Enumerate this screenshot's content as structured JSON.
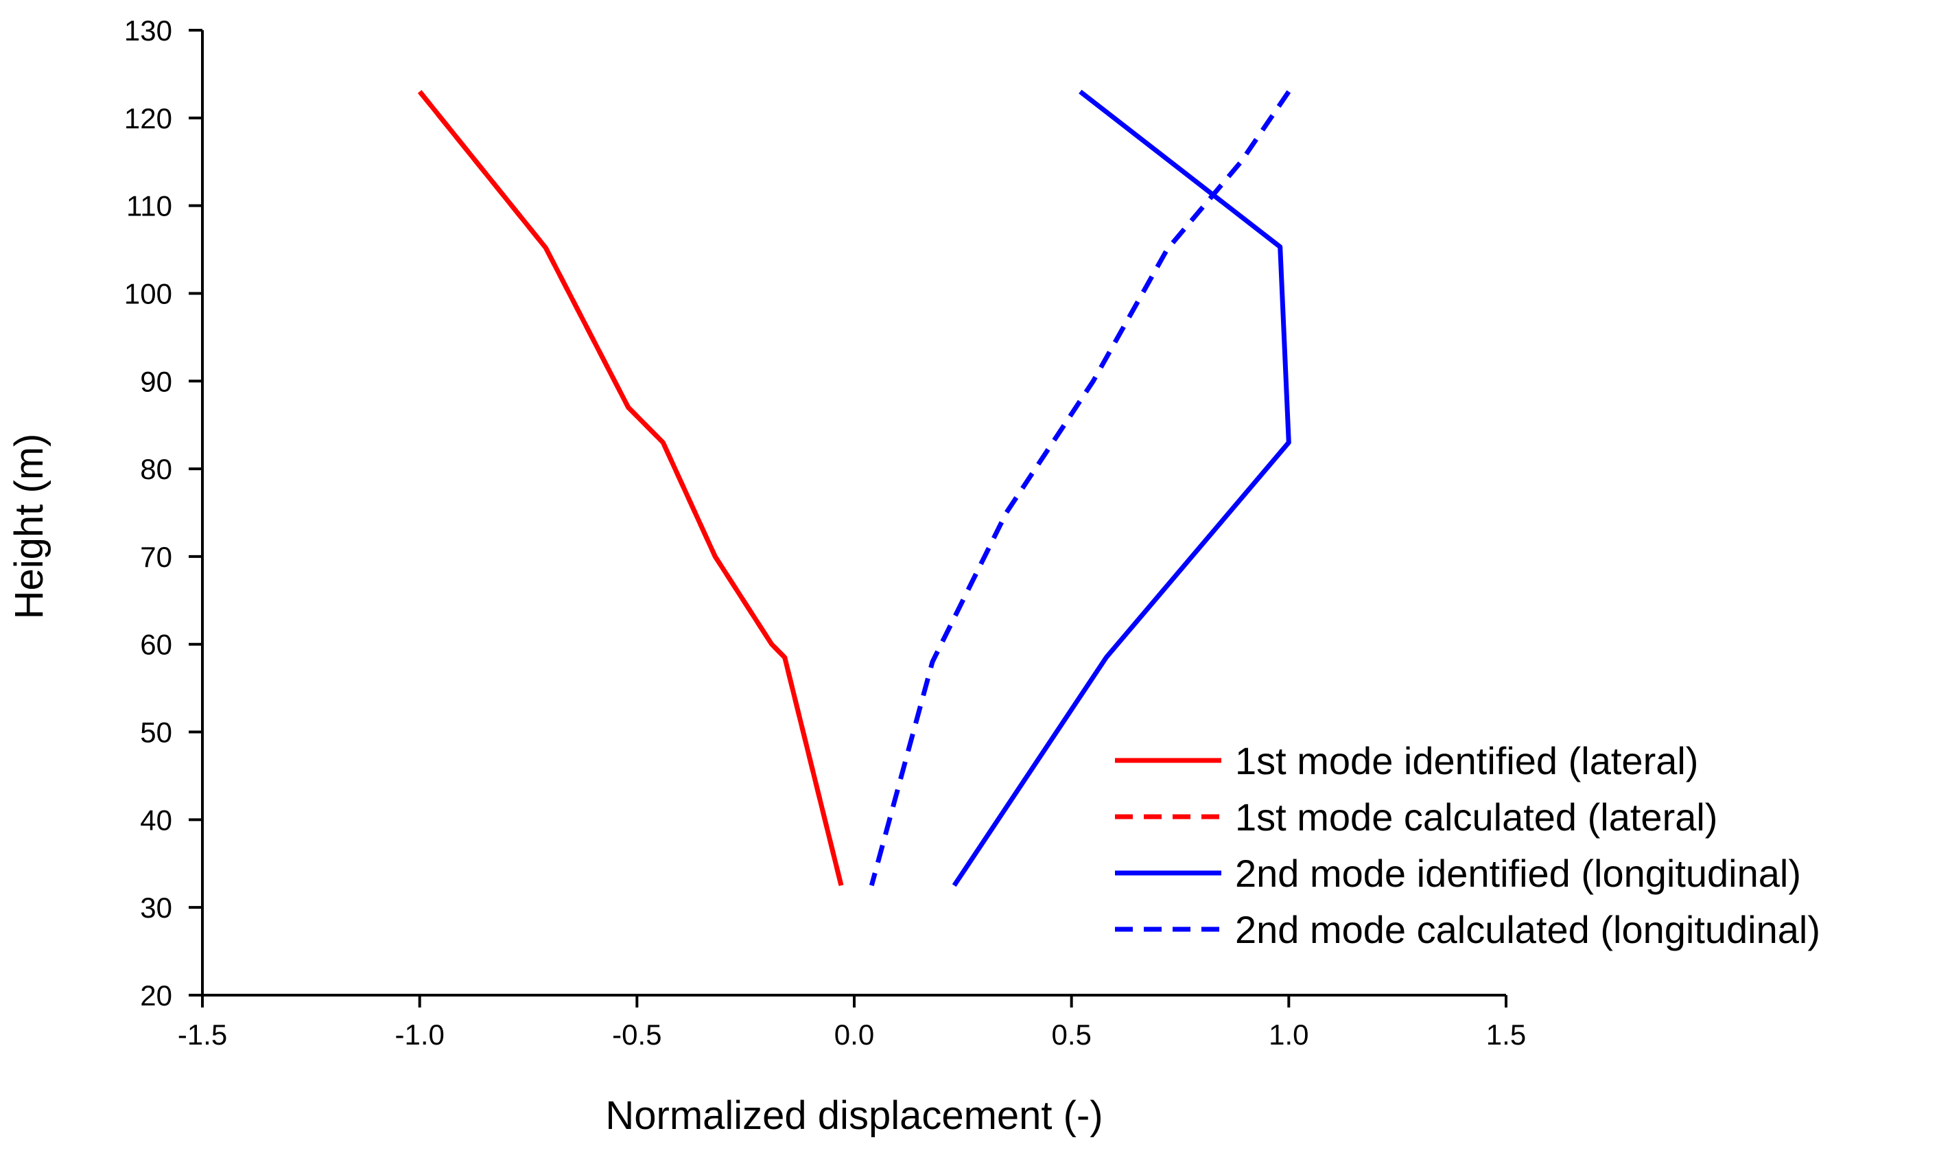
{
  "chart_data": {
    "type": "line",
    "xlabel": "Normalized displacement (-)",
    "ylabel": "Height (m)",
    "xlim": [
      -1.5,
      1.5
    ],
    "ylim": [
      20,
      130
    ],
    "xticks": [
      -1.5,
      -1.0,
      -0.5,
      0.0,
      0.5,
      1.0,
      1.5
    ],
    "xtick_labels": [
      "-1.5",
      "-1.0",
      "-0.5",
      "0.0",
      "0.5",
      "1.0",
      "1.5"
    ],
    "yticks": [
      20,
      30,
      40,
      50,
      60,
      70,
      80,
      90,
      100,
      110,
      120,
      130
    ],
    "ytick_labels": [
      "20",
      "30",
      "40",
      "50",
      "60",
      "70",
      "80",
      "90",
      "100",
      "110",
      "120",
      "130"
    ],
    "grid": false,
    "legend_position": "bottom-right",
    "series": [
      {
        "name": "1st mode identified (lateral)",
        "color": "#ff0000",
        "dash": "solid",
        "x": [
          -1.0,
          -0.71,
          -0.52,
          -0.44,
          -0.32,
          -0.19,
          -0.16,
          -0.03
        ],
        "y": [
          123,
          105.2,
          87,
          83,
          70,
          60,
          58.5,
          32.5
        ]
      },
      {
        "name": "1st mode calculated (lateral)",
        "color": "#ff0000",
        "dash": "dashed",
        "x": [
          -1.0,
          -0.71,
          -0.52,
          -0.44,
          -0.32,
          -0.19,
          -0.16,
          -0.03
        ],
        "y": [
          123,
          105.2,
          87,
          83,
          70,
          60,
          58.5,
          32.5
        ]
      },
      {
        "name": "2nd mode identified (longitudinal)",
        "color": "#0000ff",
        "dash": "solid",
        "x": [
          0.52,
          0.98,
          1.0,
          0.58,
          0.23
        ],
        "y": [
          123,
          105.3,
          83,
          58.5,
          32.5
        ]
      },
      {
        "name": "2nd mode calculated (longitudinal)",
        "color": "#0000ff",
        "dash": "dashed",
        "x": [
          1.0,
          0.89,
          0.72,
          0.55,
          0.35,
          0.18,
          0.04
        ],
        "y": [
          123,
          115,
          105,
          90,
          75,
          58,
          32.5
        ]
      }
    ]
  }
}
